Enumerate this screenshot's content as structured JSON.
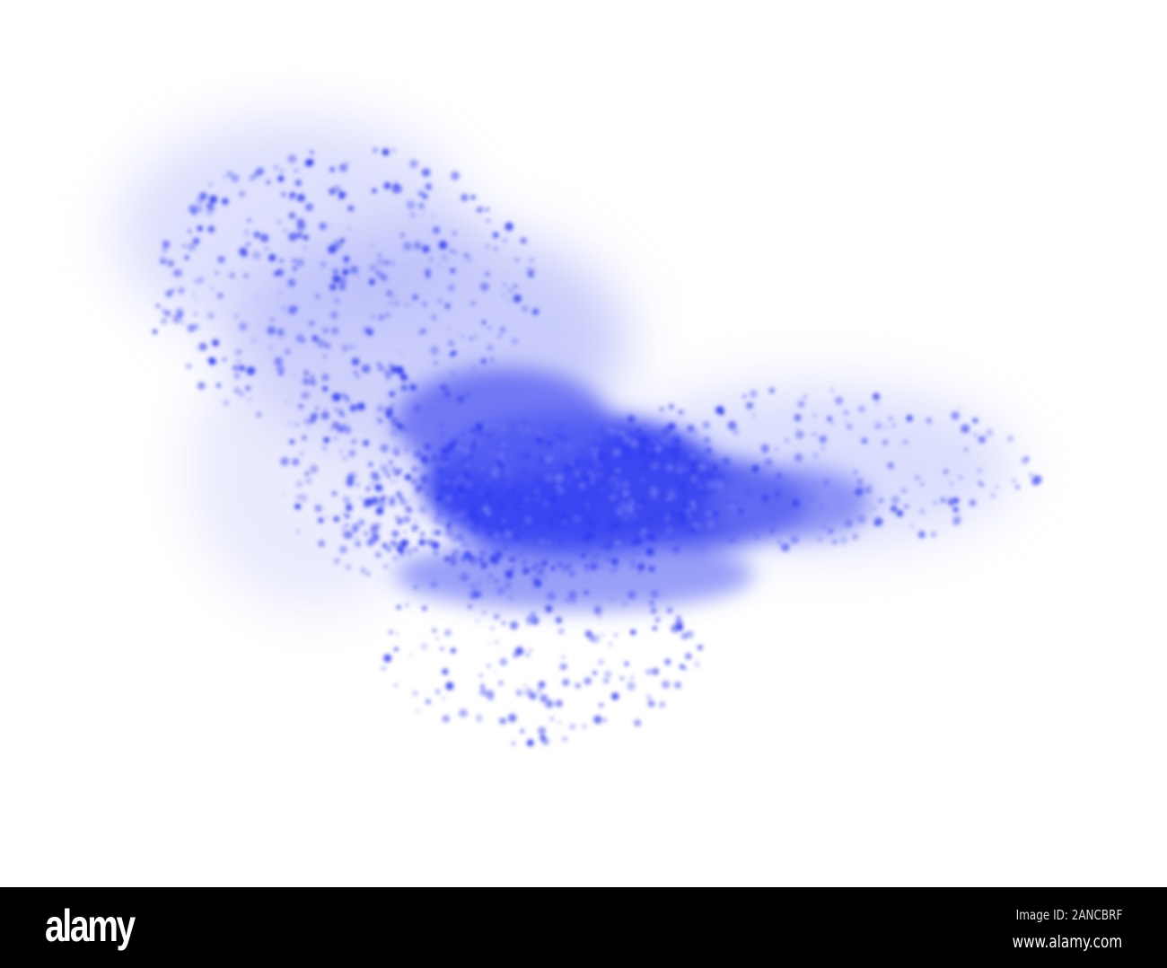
{
  "photo": {
    "subject": "blue powder explosion",
    "powder_color": "#2f3cf0",
    "background_color": "#ffffff"
  },
  "footer": {
    "logo": "alamy",
    "image_id": "Image ID: 2ANCBRF",
    "website": "www.alamy.com"
  }
}
